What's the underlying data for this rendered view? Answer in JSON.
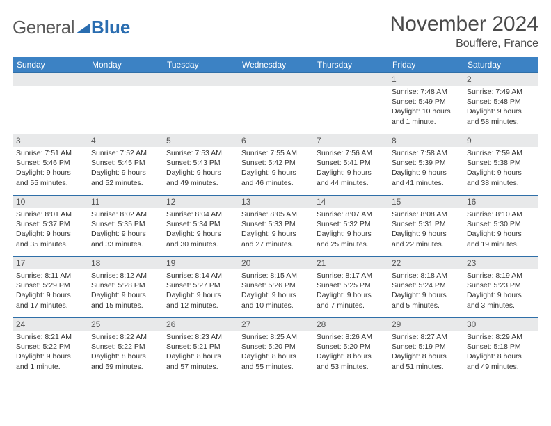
{
  "logo": {
    "text1": "General",
    "text2": "Blue"
  },
  "title": "November 2024",
  "location": "Bouffere, France",
  "colors": {
    "header_bg": "#3c82c4",
    "header_text": "#ffffff",
    "daynum_bg": "#e8e9ea",
    "row_border": "#2f6fa8",
    "logo_gray": "#5a5a5a",
    "logo_blue": "#2a6db0",
    "title_color": "#4a4a4a"
  },
  "day_headers": [
    "Sunday",
    "Monday",
    "Tuesday",
    "Wednesday",
    "Thursday",
    "Friday",
    "Saturday"
  ],
  "weeks": [
    [
      {
        "n": "",
        "lines": []
      },
      {
        "n": "",
        "lines": []
      },
      {
        "n": "",
        "lines": []
      },
      {
        "n": "",
        "lines": []
      },
      {
        "n": "",
        "lines": []
      },
      {
        "n": "1",
        "lines": [
          "Sunrise: 7:48 AM",
          "Sunset: 5:49 PM",
          "Daylight: 10 hours and 1 minute."
        ]
      },
      {
        "n": "2",
        "lines": [
          "Sunrise: 7:49 AM",
          "Sunset: 5:48 PM",
          "Daylight: 9 hours and 58 minutes."
        ]
      }
    ],
    [
      {
        "n": "3",
        "lines": [
          "Sunrise: 7:51 AM",
          "Sunset: 5:46 PM",
          "Daylight: 9 hours and 55 minutes."
        ]
      },
      {
        "n": "4",
        "lines": [
          "Sunrise: 7:52 AM",
          "Sunset: 5:45 PM",
          "Daylight: 9 hours and 52 minutes."
        ]
      },
      {
        "n": "5",
        "lines": [
          "Sunrise: 7:53 AM",
          "Sunset: 5:43 PM",
          "Daylight: 9 hours and 49 minutes."
        ]
      },
      {
        "n": "6",
        "lines": [
          "Sunrise: 7:55 AM",
          "Sunset: 5:42 PM",
          "Daylight: 9 hours and 46 minutes."
        ]
      },
      {
        "n": "7",
        "lines": [
          "Sunrise: 7:56 AM",
          "Sunset: 5:41 PM",
          "Daylight: 9 hours and 44 minutes."
        ]
      },
      {
        "n": "8",
        "lines": [
          "Sunrise: 7:58 AM",
          "Sunset: 5:39 PM",
          "Daylight: 9 hours and 41 minutes."
        ]
      },
      {
        "n": "9",
        "lines": [
          "Sunrise: 7:59 AM",
          "Sunset: 5:38 PM",
          "Daylight: 9 hours and 38 minutes."
        ]
      }
    ],
    [
      {
        "n": "10",
        "lines": [
          "Sunrise: 8:01 AM",
          "Sunset: 5:37 PM",
          "Daylight: 9 hours and 35 minutes."
        ]
      },
      {
        "n": "11",
        "lines": [
          "Sunrise: 8:02 AM",
          "Sunset: 5:35 PM",
          "Daylight: 9 hours and 33 minutes."
        ]
      },
      {
        "n": "12",
        "lines": [
          "Sunrise: 8:04 AM",
          "Sunset: 5:34 PM",
          "Daylight: 9 hours and 30 minutes."
        ]
      },
      {
        "n": "13",
        "lines": [
          "Sunrise: 8:05 AM",
          "Sunset: 5:33 PM",
          "Daylight: 9 hours and 27 minutes."
        ]
      },
      {
        "n": "14",
        "lines": [
          "Sunrise: 8:07 AM",
          "Sunset: 5:32 PM",
          "Daylight: 9 hours and 25 minutes."
        ]
      },
      {
        "n": "15",
        "lines": [
          "Sunrise: 8:08 AM",
          "Sunset: 5:31 PM",
          "Daylight: 9 hours and 22 minutes."
        ]
      },
      {
        "n": "16",
        "lines": [
          "Sunrise: 8:10 AM",
          "Sunset: 5:30 PM",
          "Daylight: 9 hours and 19 minutes."
        ]
      }
    ],
    [
      {
        "n": "17",
        "lines": [
          "Sunrise: 8:11 AM",
          "Sunset: 5:29 PM",
          "Daylight: 9 hours and 17 minutes."
        ]
      },
      {
        "n": "18",
        "lines": [
          "Sunrise: 8:12 AM",
          "Sunset: 5:28 PM",
          "Daylight: 9 hours and 15 minutes."
        ]
      },
      {
        "n": "19",
        "lines": [
          "Sunrise: 8:14 AM",
          "Sunset: 5:27 PM",
          "Daylight: 9 hours and 12 minutes."
        ]
      },
      {
        "n": "20",
        "lines": [
          "Sunrise: 8:15 AM",
          "Sunset: 5:26 PM",
          "Daylight: 9 hours and 10 minutes."
        ]
      },
      {
        "n": "21",
        "lines": [
          "Sunrise: 8:17 AM",
          "Sunset: 5:25 PM",
          "Daylight: 9 hours and 7 minutes."
        ]
      },
      {
        "n": "22",
        "lines": [
          "Sunrise: 8:18 AM",
          "Sunset: 5:24 PM",
          "Daylight: 9 hours and 5 minutes."
        ]
      },
      {
        "n": "23",
        "lines": [
          "Sunrise: 8:19 AM",
          "Sunset: 5:23 PM",
          "Daylight: 9 hours and 3 minutes."
        ]
      }
    ],
    [
      {
        "n": "24",
        "lines": [
          "Sunrise: 8:21 AM",
          "Sunset: 5:22 PM",
          "Daylight: 9 hours and 1 minute."
        ]
      },
      {
        "n": "25",
        "lines": [
          "Sunrise: 8:22 AM",
          "Sunset: 5:22 PM",
          "Daylight: 8 hours and 59 minutes."
        ]
      },
      {
        "n": "26",
        "lines": [
          "Sunrise: 8:23 AM",
          "Sunset: 5:21 PM",
          "Daylight: 8 hours and 57 minutes."
        ]
      },
      {
        "n": "27",
        "lines": [
          "Sunrise: 8:25 AM",
          "Sunset: 5:20 PM",
          "Daylight: 8 hours and 55 minutes."
        ]
      },
      {
        "n": "28",
        "lines": [
          "Sunrise: 8:26 AM",
          "Sunset: 5:20 PM",
          "Daylight: 8 hours and 53 minutes."
        ]
      },
      {
        "n": "29",
        "lines": [
          "Sunrise: 8:27 AM",
          "Sunset: 5:19 PM",
          "Daylight: 8 hours and 51 minutes."
        ]
      },
      {
        "n": "30",
        "lines": [
          "Sunrise: 8:29 AM",
          "Sunset: 5:18 PM",
          "Daylight: 8 hours and 49 minutes."
        ]
      }
    ]
  ]
}
